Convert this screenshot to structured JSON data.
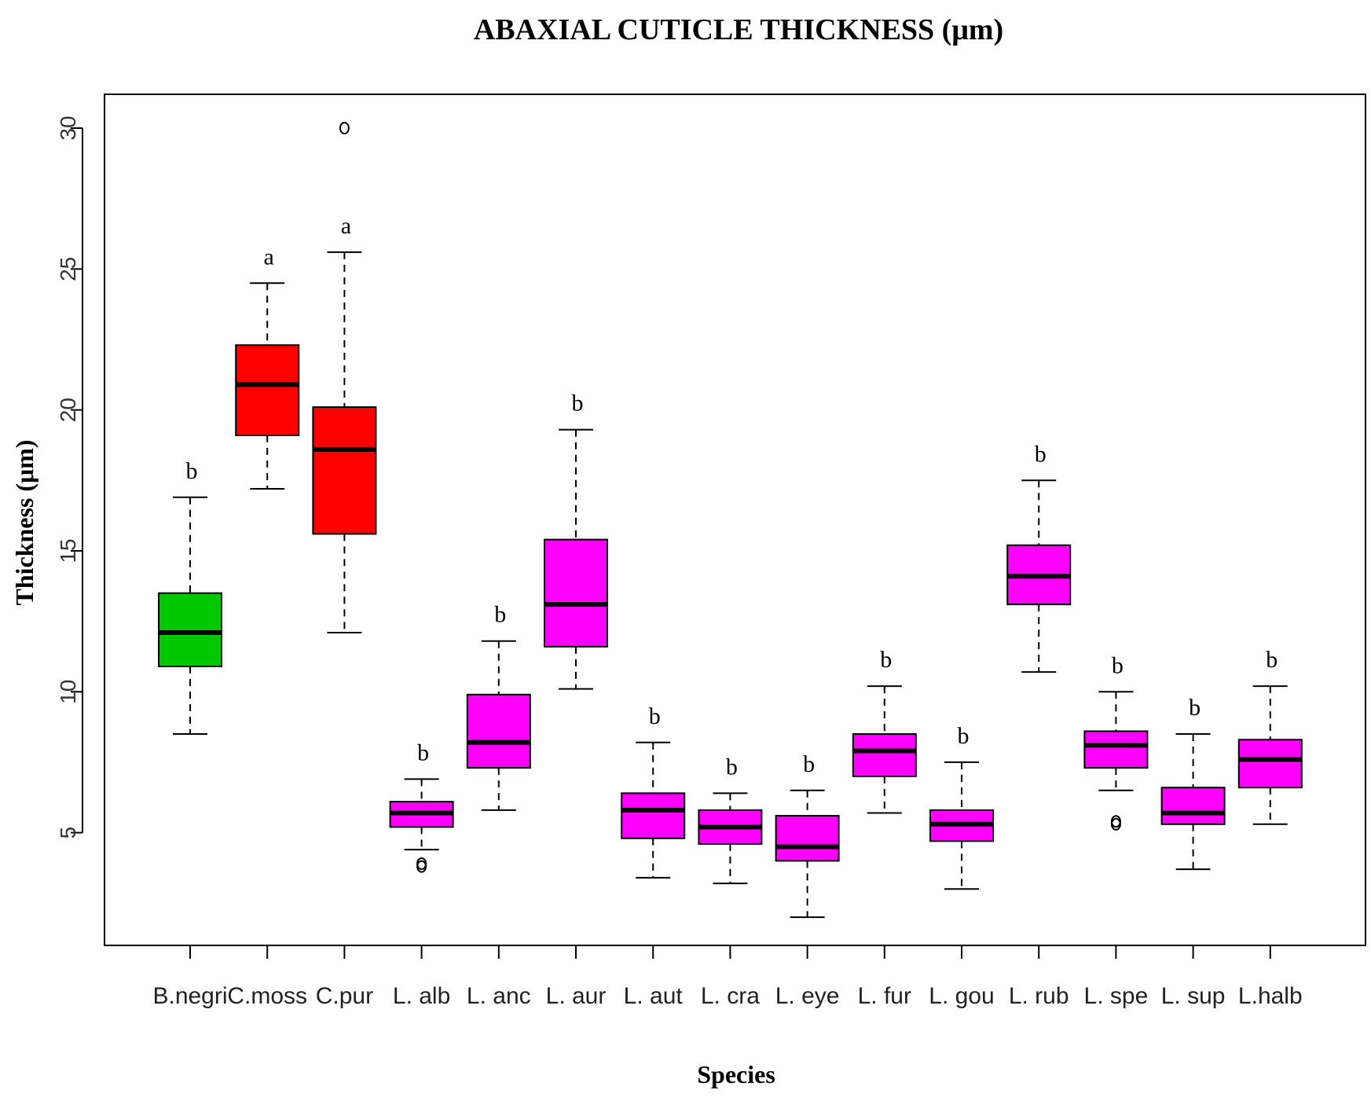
{
  "chart_data": {
    "type": "box",
    "title": "ABAXIAL CUTICLE THICKNESS (μm)",
    "xlabel": "Species",
    "ylabel": "Thickness (μm)",
    "ylim": [
      1.0,
      31.2
    ],
    "yticks": [
      5,
      10,
      15,
      20,
      25,
      30
    ],
    "colors": {
      "green": "#00c800",
      "red": "#ff0000",
      "magenta": "#ff00ff",
      "median": "#000000"
    },
    "categories": [
      "B.negri",
      "C.moss",
      "C.pur",
      "L. alb",
      "L. anc",
      "L. aur",
      "L. aut",
      "L. cra",
      "L. eye",
      "L. fur",
      "L. gou",
      "L. rub",
      "L. spe",
      "L. sup",
      "L.halb"
    ],
    "boxes": [
      {
        "label": "B.negri",
        "whisker_low": 8.5,
        "q1": 10.9,
        "median": 12.1,
        "q3": 13.5,
        "whisker_high": 16.9,
        "outliers": [],
        "color": "green",
        "group": "b"
      },
      {
        "label": "C.moss",
        "whisker_low": 17.2,
        "q1": 19.1,
        "median": 20.9,
        "q3": 22.3,
        "whisker_high": 24.5,
        "outliers": [],
        "color": "red",
        "group": "a"
      },
      {
        "label": "C.pur",
        "whisker_low": 12.1,
        "q1": 15.6,
        "median": 18.6,
        "q3": 20.1,
        "whisker_high": 25.6,
        "outliers": [
          30.0
        ],
        "color": "red",
        "group": "a"
      },
      {
        "label": "L. alb",
        "whisker_low": 4.4,
        "q1": 5.2,
        "median": 5.7,
        "q3": 6.1,
        "whisker_high": 6.9,
        "outliers": [
          3.8,
          3.9
        ],
        "color": "magenta",
        "group": "b"
      },
      {
        "label": "L. anc",
        "whisker_low": 5.8,
        "q1": 7.3,
        "median": 8.2,
        "q3": 9.9,
        "whisker_high": 11.8,
        "outliers": [],
        "color": "magenta",
        "group": "b"
      },
      {
        "label": "L. aur",
        "whisker_low": 10.1,
        "q1": 11.6,
        "median": 13.1,
        "q3": 15.4,
        "whisker_high": 19.3,
        "outliers": [],
        "color": "magenta",
        "group": "b"
      },
      {
        "label": "L. aut",
        "whisker_low": 3.4,
        "q1": 4.8,
        "median": 5.8,
        "q3": 6.4,
        "whisker_high": 8.2,
        "outliers": [],
        "color": "magenta",
        "group": "b"
      },
      {
        "label": "L. cra",
        "whisker_low": 3.2,
        "q1": 4.6,
        "median": 5.2,
        "q3": 5.8,
        "whisker_high": 6.4,
        "outliers": [],
        "color": "magenta",
        "group": "b"
      },
      {
        "label": "L. eye",
        "whisker_low": 2.0,
        "q1": 4.0,
        "median": 4.5,
        "q3": 5.6,
        "whisker_high": 6.5,
        "outliers": [],
        "color": "magenta",
        "group": "b"
      },
      {
        "label": "L. fur",
        "whisker_low": 5.7,
        "q1": 7.0,
        "median": 7.9,
        "q3": 8.5,
        "whisker_high": 10.2,
        "outliers": [],
        "color": "magenta",
        "group": "b"
      },
      {
        "label": "L. gou",
        "whisker_low": 3.0,
        "q1": 4.7,
        "median": 5.3,
        "q3": 5.8,
        "whisker_high": 7.5,
        "outliers": [],
        "color": "magenta",
        "group": "b"
      },
      {
        "label": "L. rub",
        "whisker_low": 10.7,
        "q1": 13.1,
        "median": 14.1,
        "q3": 15.2,
        "whisker_high": 17.5,
        "outliers": [],
        "color": "magenta",
        "group": "b"
      },
      {
        "label": "L. spe",
        "whisker_low": 6.5,
        "q1": 7.3,
        "median": 8.1,
        "q3": 8.6,
        "whisker_high": 10.0,
        "outliers": [
          5.3,
          5.4
        ],
        "color": "magenta",
        "group": "b"
      },
      {
        "label": "L. sup",
        "whisker_low": 3.7,
        "q1": 5.3,
        "median": 5.7,
        "q3": 6.6,
        "whisker_high": 8.5,
        "outliers": [],
        "color": "magenta",
        "group": "b"
      },
      {
        "label": "L.halb",
        "whisker_low": 5.3,
        "q1": 6.6,
        "median": 7.6,
        "q3": 8.3,
        "whisker_high": 10.2,
        "outliers": [],
        "color": "magenta",
        "group": "b"
      }
    ]
  }
}
